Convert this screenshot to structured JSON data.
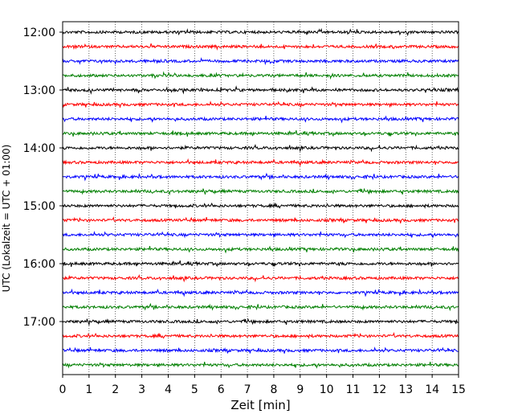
{
  "chart_data": {
    "type": "line",
    "title": "",
    "xlabel": "Zeit  [min]",
    "ylabel": "UTC (Lokalzeit = UTC + 01:00)",
    "xlim": [
      0,
      15
    ],
    "x_ticks": [
      "0",
      "1",
      "2",
      "3",
      "4",
      "5",
      "6",
      "7",
      "8",
      "9",
      "10",
      "11",
      "12",
      "13",
      "14",
      "15"
    ],
    "y_ticks": [
      "12:00",
      "13:00",
      "14:00",
      "15:00",
      "16:00",
      "17:00"
    ],
    "grid": "vertical-dotted",
    "trace_interval_min": 15,
    "start_time": "12:00",
    "trace_count": 24,
    "colors": [
      "#000000",
      "#ff0000",
      "#0000ff",
      "#007f00"
    ]
  }
}
